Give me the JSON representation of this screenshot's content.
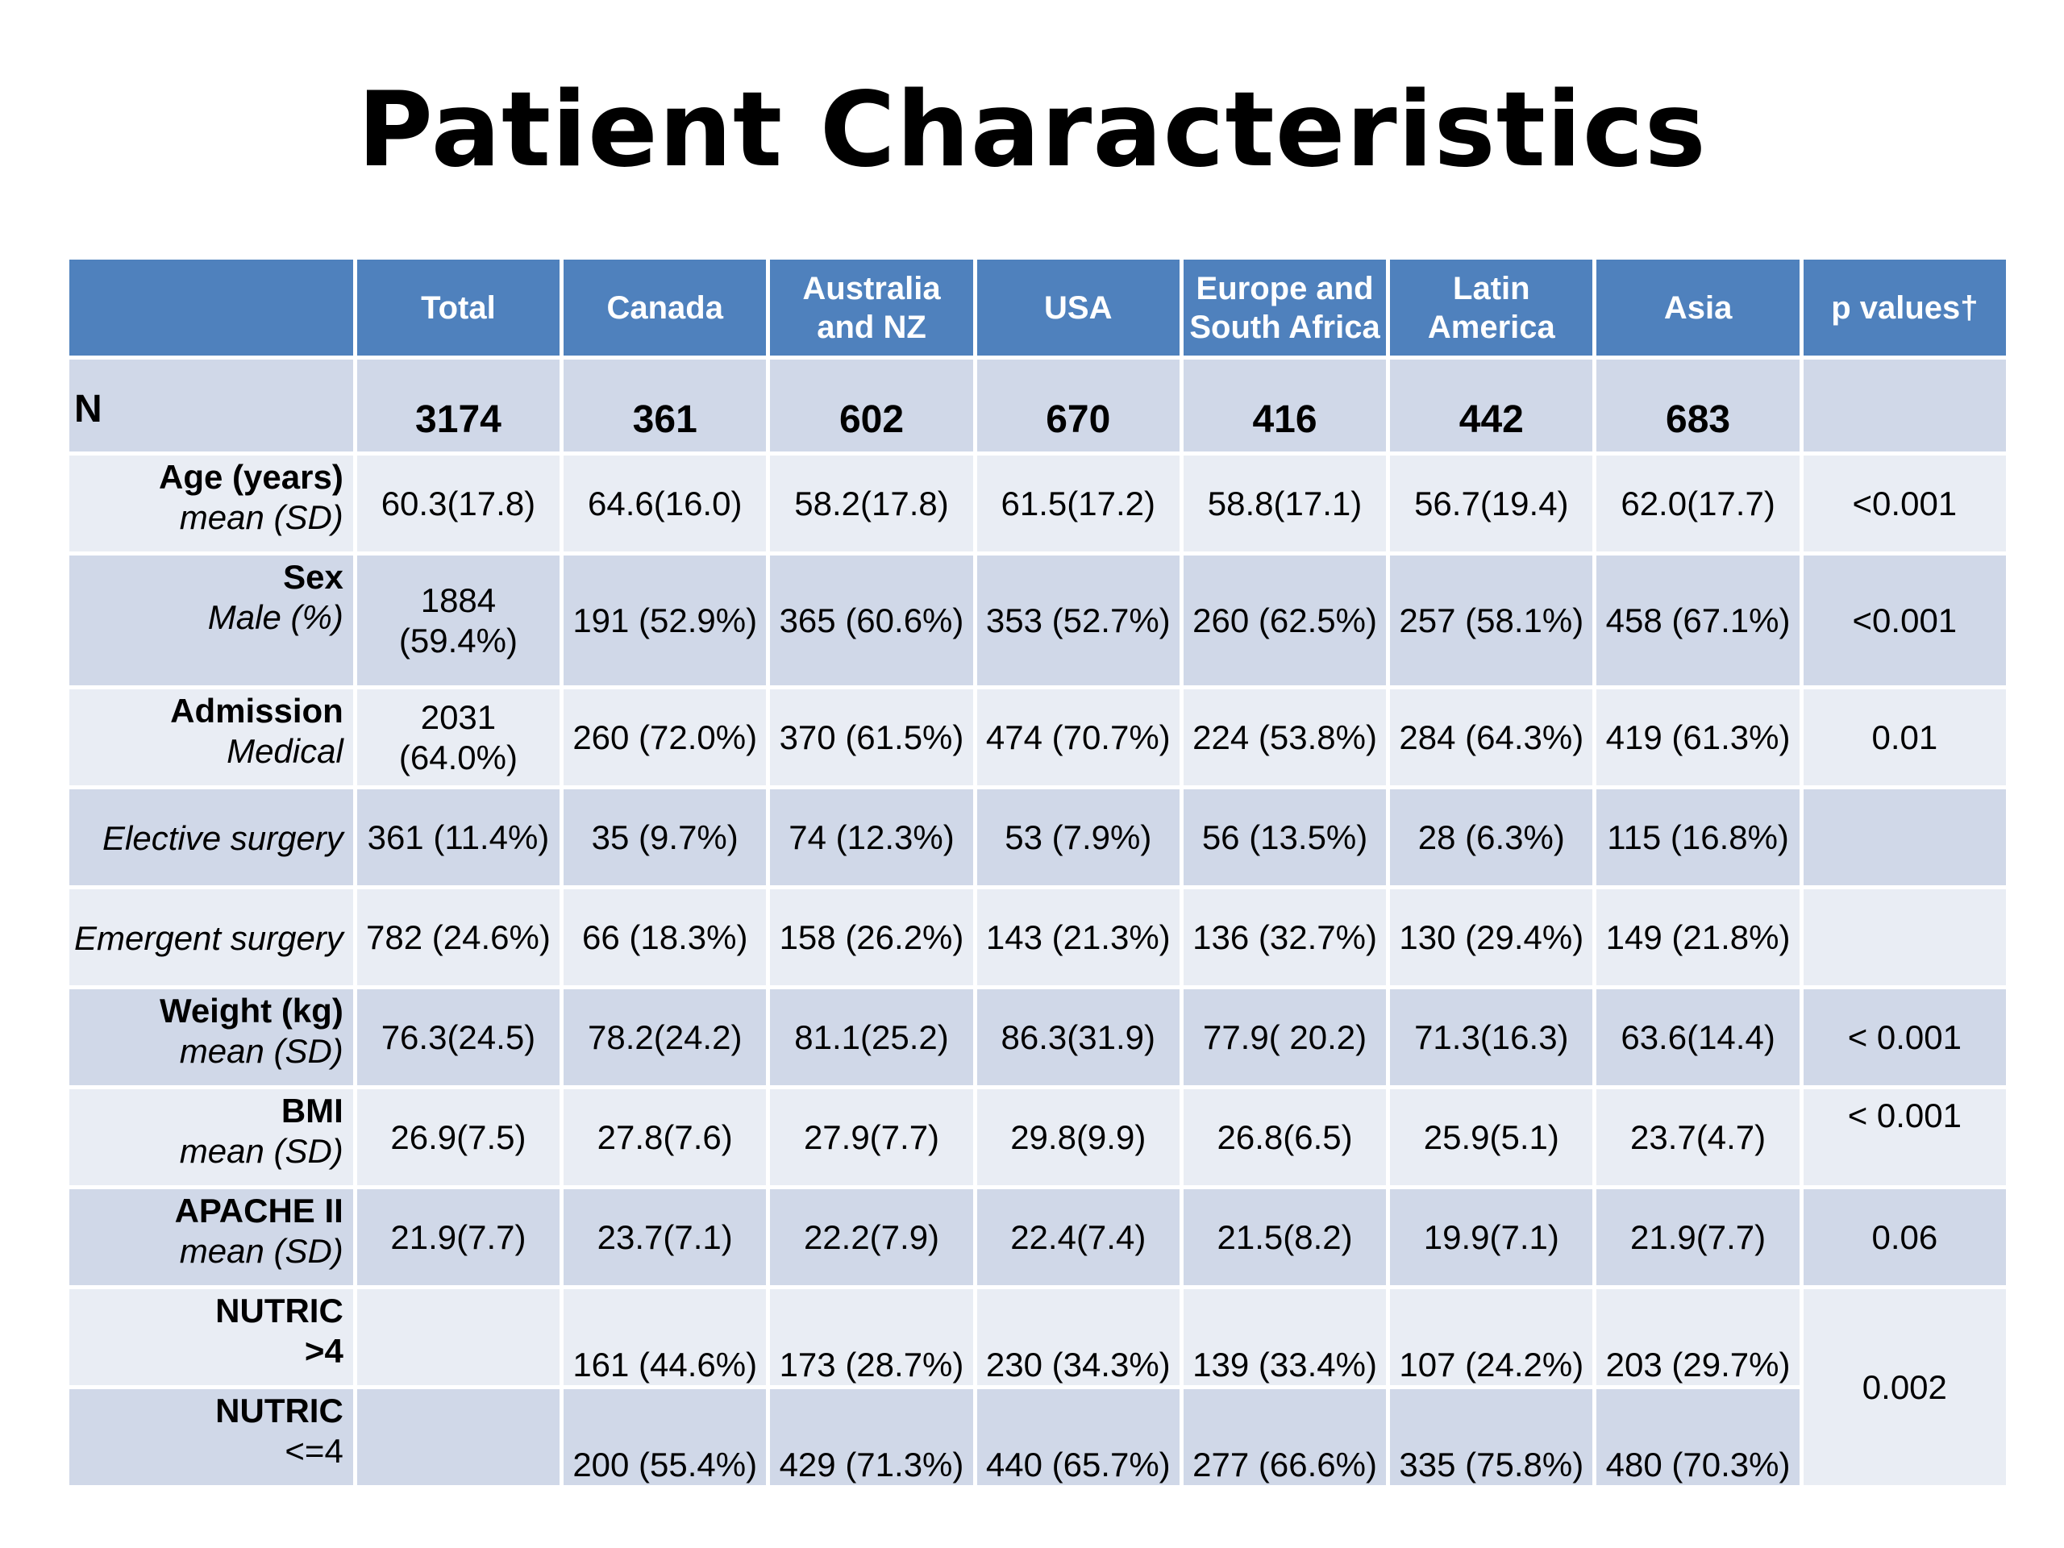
{
  "title": "Patient Characteristics",
  "columns": [
    "",
    "Total",
    "Canada",
    "Australia and NZ",
    "USA",
    "Europe and South Africa",
    "Latin America",
    "Asia",
    "p values†"
  ],
  "n_row": {
    "label": "N",
    "values": [
      "3174",
      "361",
      "602",
      "670",
      "416",
      "442",
      "683"
    ],
    "p": ""
  },
  "rows": [
    {
      "label1": "Age (years)",
      "label2": "mean (SD)",
      "values": [
        "60.3(17.8)",
        "64.6(16.0)",
        "58.2(17.8)",
        "61.5(17.2)",
        "58.8(17.1)",
        "56.7(19.4)",
        "62.0(17.7)"
      ],
      "p": "<0.001"
    },
    {
      "label1": "Sex",
      "label2": "Male (%)",
      "values": [
        "1884 (59.4%)",
        "191 (52.9%)",
        "365 (60.6%)",
        "353 (52.7%)",
        "260 (62.5%)",
        "257 (58.1%)",
        "458 (67.1%)"
      ],
      "p": "<0.001"
    },
    {
      "label1": "Admission",
      "label2": "Medical",
      "values": [
        "2031 (64.0%)",
        "260 (72.0%)",
        "370 (61.5%)",
        "474 (70.7%)",
        "224 (53.8%)",
        "284 (64.3%)",
        "419 (61.3%)"
      ],
      "p": "0.01"
    },
    {
      "label1": "",
      "label2": "Elective surgery",
      "values": [
        "361 (11.4%)",
        "35 (9.7%)",
        "74 (12.3%)",
        "53 (7.9%)",
        "56 (13.5%)",
        "28 (6.3%)",
        "115 (16.8%)"
      ],
      "p": ""
    },
    {
      "label1": "",
      "label2": "Emergent surgery",
      "values": [
        "782 (24.6%)",
        "66 (18.3%)",
        "158 (26.2%)",
        "143 (21.3%)",
        "136 (32.7%)",
        "130 (29.4%)",
        "149 (21.8%)"
      ],
      "p": ""
    },
    {
      "label1": "Weight (kg)",
      "label2": "mean (SD)",
      "values": [
        "76.3(24.5)",
        "78.2(24.2)",
        "81.1(25.2)",
        "86.3(31.9)",
        "77.9( 20.2)",
        "71.3(16.3)",
        "63.6(14.4)"
      ],
      "p": "< 0.001"
    },
    {
      "label1": "BMI",
      "label2": "mean (SD)",
      "values": [
        "26.9(7.5)",
        "27.8(7.6)",
        "27.9(7.7)",
        "29.8(9.9)",
        "26.8(6.5)",
        "25.9(5.1)",
        "23.7(4.7)"
      ],
      "p": "< 0.001"
    },
    {
      "label1": "APACHE II",
      "label2": "mean (SD)",
      "values": [
        "21.9(7.7)",
        "23.7(7.1)",
        "22.2(7.9)",
        "22.4(7.4)",
        "21.5(8.2)",
        "19.9(7.1)",
        "21.9(7.7)"
      ],
      "p": "0.06"
    },
    {
      "label1": "NUTRIC",
      "label2": ">4",
      "values": [
        "",
        "161 (44.6%)",
        "173 (28.7%)",
        "230 (34.3%)",
        "139 (33.4%)",
        "107 (24.2%)",
        "203 (29.7%)"
      ],
      "p": ""
    },
    {
      "label1": "NUTRIC",
      "label2": "<=4",
      "values": [
        "",
        "200 (55.4%)",
        "429 (71.3%)",
        "440 (65.7%)",
        "277 (66.6%)",
        "335 (75.8%)",
        "480 (70.3%)"
      ],
      "p": ""
    }
  ],
  "nutric_p": "0.002",
  "colors": {
    "header": "#4f81bd",
    "row_dark": "#d0d8e8",
    "row_light": "#e9edf4"
  }
}
